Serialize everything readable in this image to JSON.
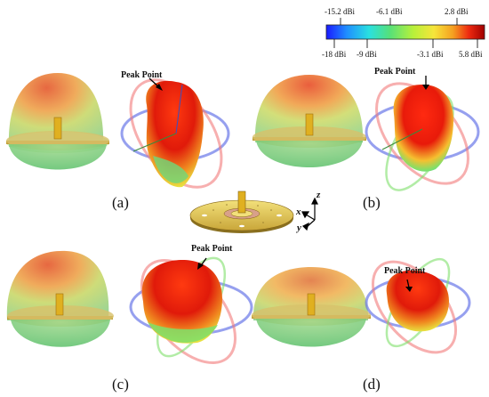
{
  "colorbar": {
    "top_labels": [
      "-15.2 dBi",
      "-6.1 dBi",
      "2.8 dBi"
    ],
    "bottom_labels": [
      "-18 dBi",
      "-9 dBi",
      "-3.1 dBi",
      "5.8 dBi"
    ],
    "stops": [
      "#1a1aff",
      "#1f8fff",
      "#29e0e0",
      "#55e07a",
      "#b8f03a",
      "#f6e53a",
      "#f5a020",
      "#ee2a10",
      "#a00000"
    ]
  },
  "panels": {
    "a": "(a)",
    "b": "(b)",
    "c": "(c)",
    "d": "(d)"
  },
  "peak_label": "Peak Point",
  "axes": {
    "x": "x",
    "y": "y",
    "z": "z"
  }
}
